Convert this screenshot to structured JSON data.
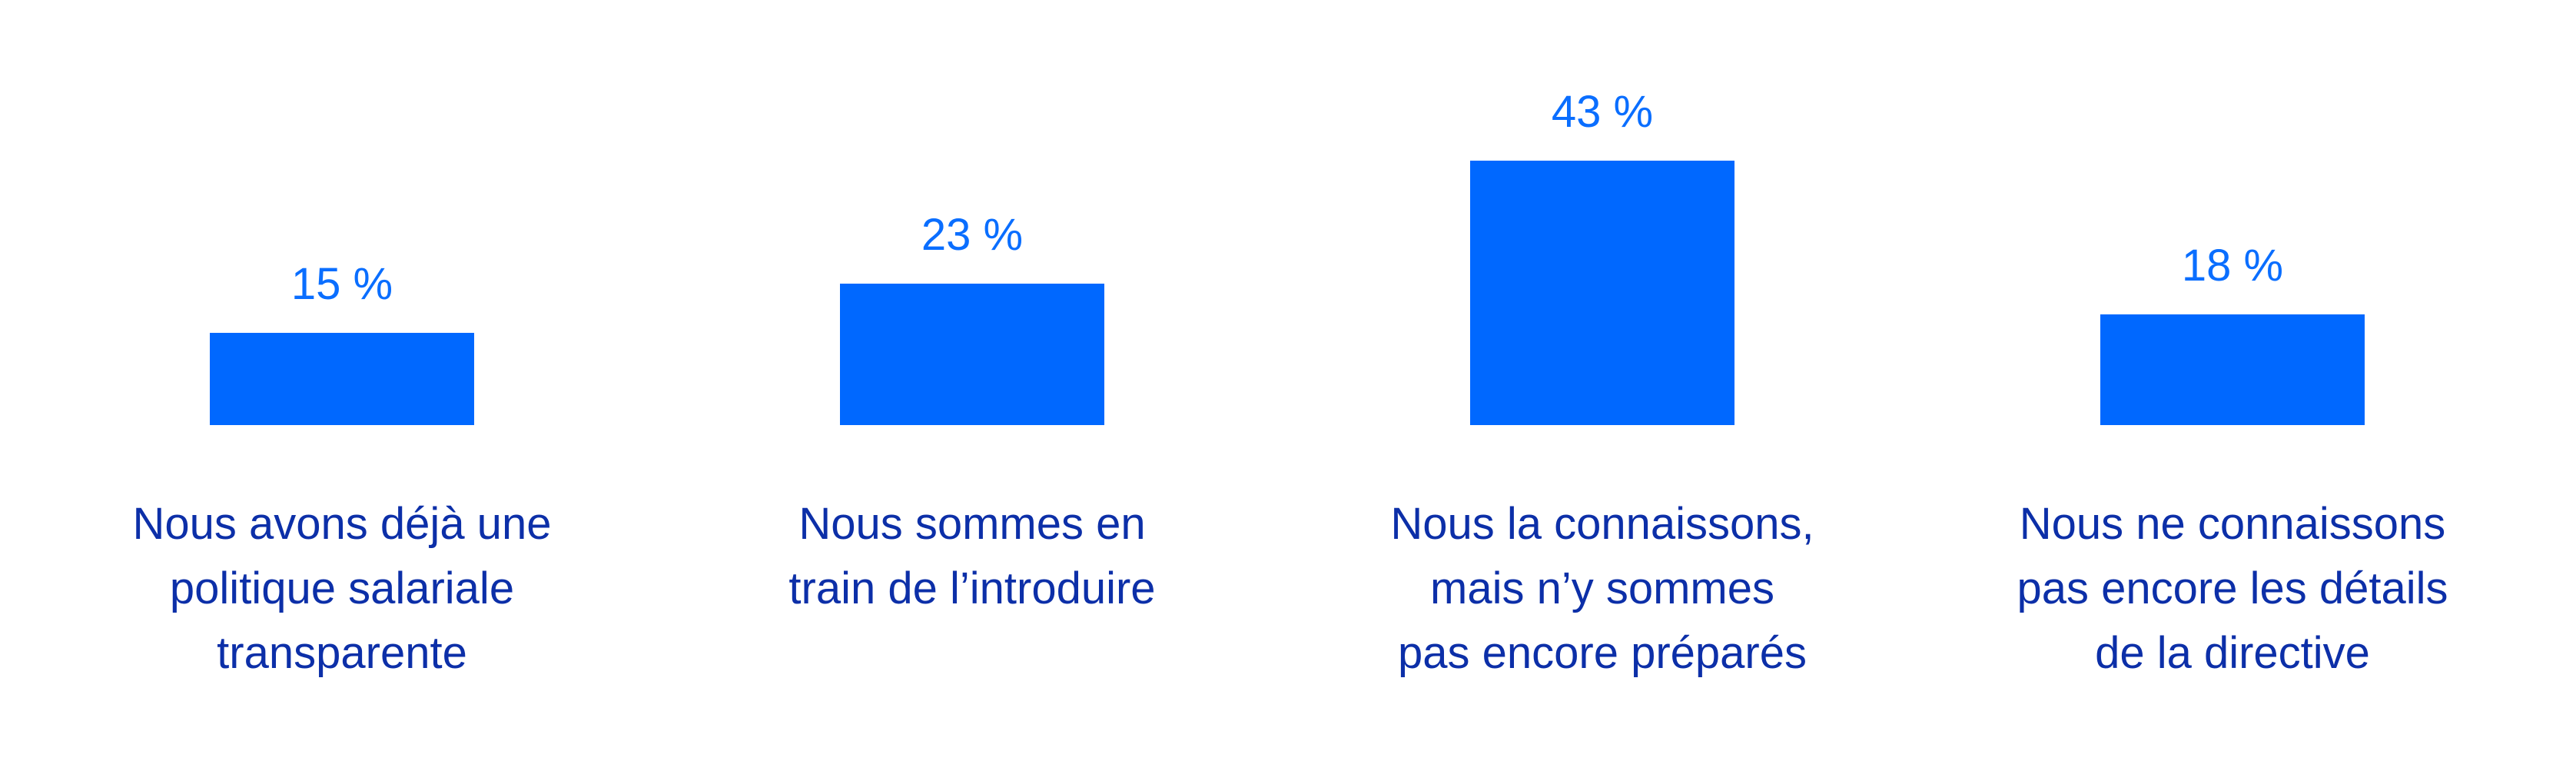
{
  "chart_data": {
    "type": "bar",
    "title": "",
    "xlabel": "",
    "ylabel": "",
    "ylim": [
      0,
      43
    ],
    "grid": false,
    "value_suffix": " %",
    "categories": [
      [
        "Nous avons déjà une",
        "politique salariale",
        "transparente"
      ],
      [
        "Nous sommes en",
        "train de l’introduire"
      ],
      [
        "Nous la connaissons,",
        "mais n’y sommes",
        "pas encore préparés"
      ],
      [
        "Nous ne connaissons",
        "pas encore les détails",
        "de la directive"
      ]
    ],
    "values": [
      15,
      23,
      43,
      18
    ],
    "value_labels": [
      "15 %",
      "23 %",
      "43 %",
      "18 %"
    ],
    "colors": {
      "bar": "#0068ff",
      "value_text": "#0a6eff",
      "category_text": "#0c2fa8"
    }
  }
}
